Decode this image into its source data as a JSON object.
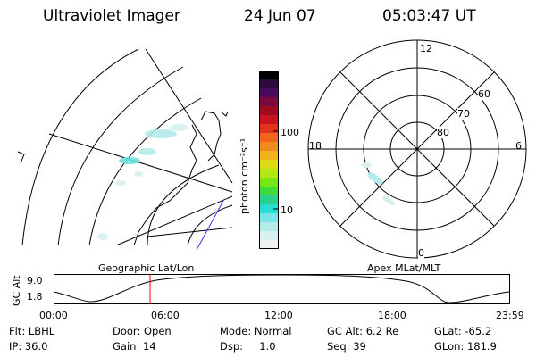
{
  "header": {
    "title": "Ultraviolet Imager",
    "date": "24 Jun 07",
    "time": "05:03:47 UT"
  },
  "colorbar": {
    "unit_label": "photon cm⁻²s⁻¹",
    "tick_100": "100",
    "tick_10": "10",
    "colors": [
      "#000000",
      "#2a0a3a",
      "#4b0a5e",
      "#7a0a3e",
      "#a00a1e",
      "#c8141e",
      "#e0321e",
      "#f0641e",
      "#f08c1e",
      "#f0b41e",
      "#dcdc14",
      "#b4e614",
      "#78e614",
      "#3cdc3c",
      "#28d28c",
      "#28dcd2",
      "#78e6e6",
      "#b4eaea",
      "#d8f0f0",
      "#f0f4f4"
    ],
    "accent_red": "#ff0000"
  },
  "polar_plot": {
    "label_12": "12",
    "label_18": "18",
    "label_6": "6",
    "label_0": "0",
    "label_60": "60",
    "label_70": "70",
    "label_80": "80"
  },
  "map_caption": "Geographic Lat/Lon",
  "polar_caption": "Apex MLat/MLT",
  "altitude_strip": {
    "axis_label": "GC Alt",
    "y_top": "9.0",
    "y_bottom": "1.8",
    "x_ticks": [
      "00:00",
      "06:00",
      "12:00",
      "18:00",
      "23:59"
    ],
    "current_marker_color": "#ff0000"
  },
  "info": {
    "flt": "Flt: LBHL",
    "ip": "IP: 36.0",
    "door": "Door: Open",
    "gain": "Gain: 14",
    "mode": "Mode: Normal",
    "dsp": "Dsp:     1.0",
    "gc_alt": "GC Alt: 6.2 Re",
    "seq": "Seq: 39",
    "glat": "GLat: -65.2",
    "glon": "GLon: 181.9"
  }
}
